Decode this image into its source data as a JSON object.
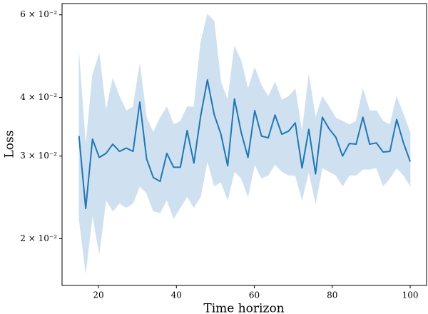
{
  "chart_data": {
    "type": "line",
    "xlabel": "Time horizon",
    "ylabel": "Loss",
    "x": [
      15,
      16.73,
      18.47,
      20.2,
      21.94,
      23.67,
      25.41,
      27.14,
      28.88,
      30.61,
      32.35,
      34.08,
      35.82,
      37.55,
      39.29,
      41.02,
      42.76,
      44.49,
      46.22,
      47.96,
      49.69,
      51.43,
      53.16,
      54.9,
      56.63,
      58.37,
      60.1,
      61.84,
      63.57,
      65.31,
      67.04,
      68.78,
      70.51,
      72.24,
      73.98,
      75.71,
      77.45,
      79.18,
      80.92,
      82.65,
      84.39,
      86.12,
      87.86,
      89.59,
      91.33,
      93.06,
      94.8,
      96.53,
      98.27,
      100
    ],
    "series": [
      {
        "color": "#1f77b4",
        "band_color": "#cfe1f0",
        "values": [
          0.0331,
          0.0232,
          0.0326,
          0.0298,
          0.0304,
          0.0318,
          0.0307,
          0.0312,
          0.0307,
          0.0391,
          0.0296,
          0.027,
          0.0265,
          0.0304,
          0.0284,
          0.0284,
          0.034,
          0.029,
          0.0365,
          0.0436,
          0.0368,
          0.0334,
          0.0286,
          0.0397,
          0.0337,
          0.0298,
          0.0375,
          0.0331,
          0.0328,
          0.0367,
          0.0334,
          0.0339,
          0.0353,
          0.0283,
          0.0342,
          0.0275,
          0.0363,
          0.0343,
          0.0329,
          0.03,
          0.0319,
          0.0318,
          0.0363,
          0.0318,
          0.032,
          0.0306,
          0.0307,
          0.0359,
          0.032,
          0.0292
        ],
        "upper": [
          0.0496,
          0.0315,
          0.0447,
          0.0496,
          0.0375,
          0.0439,
          0.0402,
          0.0375,
          0.0382,
          0.0471,
          0.0362,
          0.0337,
          0.0362,
          0.0382,
          0.035,
          0.0356,
          0.0382,
          0.0382,
          0.0523,
          0.0602,
          0.0581,
          0.0431,
          0.0395,
          0.0514,
          0.0479,
          0.0417,
          0.0463,
          0.0424,
          0.0402,
          0.0431,
          0.0395,
          0.0402,
          0.0417,
          0.0337,
          0.0447,
          0.0362,
          0.0402,
          0.0382,
          0.0362,
          0.0356,
          0.035,
          0.0356,
          0.0417,
          0.0375,
          0.0375,
          0.0356,
          0.035,
          0.0402,
          0.0368,
          0.0337
        ],
        "lower": [
          0.0221,
          0.0169,
          0.0225,
          0.0186,
          0.0242,
          0.0229,
          0.0238,
          0.0233,
          0.0238,
          0.0259,
          0.025,
          0.0229,
          0.0227,
          0.0242,
          0.0221,
          0.0233,
          0.0246,
          0.0233,
          0.0246,
          0.0293,
          0.0259,
          0.0264,
          0.0242,
          0.0278,
          0.0269,
          0.0246,
          0.0288,
          0.0269,
          0.0273,
          0.0288,
          0.0278,
          0.0273,
          0.0273,
          0.0242,
          0.0278,
          0.0238,
          0.0283,
          0.0278,
          0.0273,
          0.0259,
          0.0273,
          0.0273,
          0.0281,
          0.0281,
          0.0283,
          0.0259,
          0.0269,
          0.0283,
          0.0273,
          0.0259
        ]
      }
    ],
    "xlim": [
      10.66,
      104.2
    ],
    "ylim": [
      0.0159,
      0.0634
    ],
    "yscale": "log",
    "xticks": [
      20,
      40,
      60,
      80,
      100
    ],
    "yticks": [
      {
        "value": 0.02,
        "label": "2 × 10⁻²"
      },
      {
        "value": 0.03,
        "label": "3 × 10⁻²"
      },
      {
        "value": 0.04,
        "label": "4 × 10⁻²"
      },
      {
        "value": 0.06,
        "label": "6 × 10⁻²"
      }
    ]
  }
}
